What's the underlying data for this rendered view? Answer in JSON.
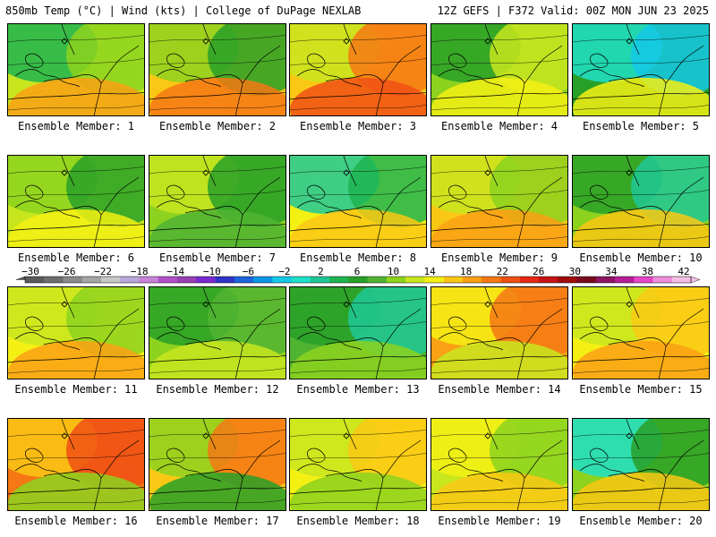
{
  "header": {
    "left": "850mb Temp (°C) | Wind (kts) | College of DuPage NEXLAB",
    "right": "12Z GEFS | F372 Valid: 00Z MON JUN 23 2025"
  },
  "colorbar": {
    "ticks": [
      "-30",
      "-26",
      "-22",
      "-18",
      "-14",
      "-10",
      "-6",
      "-2",
      "2",
      "6",
      "10",
      "14",
      "18",
      "22",
      "26",
      "30",
      "34",
      "38",
      "42"
    ],
    "colors": [
      "#5a5a5a",
      "#6e6e6e",
      "#8a8a8a",
      "#a5a5a5",
      "#c8c8c8",
      "#b9a7d9",
      "#c882d8",
      "#b050c8",
      "#9640b4",
      "#7a2ad0",
      "#3232c8",
      "#1e64dc",
      "#0a96e6",
      "#14c8e6",
      "#1ee1c8",
      "#1ec896",
      "#1eb450",
      "#28a028",
      "#50b432",
      "#8cd21e",
      "#c8e61e",
      "#f5f014",
      "#fac814",
      "#faa014",
      "#f57814",
      "#f05014",
      "#e62814",
      "#c81414",
      "#a00a0a",
      "#780a1e",
      "#8c1464",
      "#b41e96",
      "#e646c8",
      "#f08cdc",
      "#f5bee6"
    ]
  },
  "members": [
    {
      "label": "Ensemble Member: 1",
      "base": "#c8e61e",
      "blobs": [
        {
          "c": "#1eb450"
        },
        {
          "c": "#8cd21e"
        },
        {
          "c": "#faa014"
        }
      ]
    },
    {
      "label": "Ensemble Member: 2",
      "base": "#fac814",
      "blobs": [
        {
          "c": "#8cd21e"
        },
        {
          "c": "#28a028"
        },
        {
          "c": "#f57814"
        }
      ]
    },
    {
      "label": "Ensemble Member: 3",
      "base": "#fac814",
      "blobs": [
        {
          "c": "#c8e61e"
        },
        {
          "c": "#f57814"
        },
        {
          "c": "#f05014"
        }
      ]
    },
    {
      "label": "Ensemble Member: 4",
      "base": "#8cd21e",
      "blobs": [
        {
          "c": "#28a028"
        },
        {
          "c": "#c8e61e"
        },
        {
          "c": "#f5f014"
        }
      ]
    },
    {
      "label": "Ensemble Member: 5",
      "base": "#28a028",
      "blobs": [
        {
          "c": "#1ee1c8"
        },
        {
          "c": "#14c8e6"
        },
        {
          "c": "#f5f014"
        }
      ]
    },
    {
      "label": "Ensemble Member: 6",
      "base": "#c8e61e",
      "blobs": [
        {
          "c": "#8cd21e"
        },
        {
          "c": "#28a028"
        },
        {
          "c": "#f5f014"
        }
      ]
    },
    {
      "label": "Ensemble Member: 7",
      "base": "#8cd21e",
      "blobs": [
        {
          "c": "#c8e61e"
        },
        {
          "c": "#28a028"
        },
        {
          "c": "#50b432"
        }
      ]
    },
    {
      "label": "Ensemble Member: 8",
      "base": "#f5f014",
      "blobs": [
        {
          "c": "#1ec896"
        },
        {
          "c": "#1eb450"
        },
        {
          "c": "#fac814"
        }
      ]
    },
    {
      "label": "Ensemble Member: 9",
      "base": "#fac814",
      "blobs": [
        {
          "c": "#c8e61e"
        },
        {
          "c": "#8cd21e"
        },
        {
          "c": "#faa014"
        }
      ]
    },
    {
      "label": "Ensemble Member: 10",
      "base": "#8cd21e",
      "blobs": [
        {
          "c": "#28a028"
        },
        {
          "c": "#1ec896"
        },
        {
          "c": "#fac814"
        }
      ]
    },
    {
      "label": "Ensemble Member: 11",
      "base": "#f5f014",
      "blobs": [
        {
          "c": "#c8e61e"
        },
        {
          "c": "#8cd21e"
        },
        {
          "c": "#faa014"
        }
      ]
    },
    {
      "label": "Ensemble Member: 12",
      "base": "#8cd21e",
      "blobs": [
        {
          "c": "#28a028"
        },
        {
          "c": "#50b432"
        },
        {
          "c": "#c8e61e"
        }
      ]
    },
    {
      "label": "Ensemble Member: 13",
      "base": "#50b432",
      "blobs": [
        {
          "c": "#28a028"
        },
        {
          "c": "#1ec896"
        },
        {
          "c": "#8cd21e"
        }
      ]
    },
    {
      "label": "Ensemble Member: 14",
      "base": "#faa014",
      "blobs": [
        {
          "c": "#f5f014"
        },
        {
          "c": "#f57814"
        },
        {
          "c": "#c8e61e"
        }
      ]
    },
    {
      "label": "Ensemble Member: 15",
      "base": "#f5f014",
      "blobs": [
        {
          "c": "#c8e61e"
        },
        {
          "c": "#fac814"
        },
        {
          "c": "#faa014"
        }
      ]
    },
    {
      "label": "Ensemble Member: 16",
      "base": "#f57814",
      "blobs": [
        {
          "c": "#fac814"
        },
        {
          "c": "#f05014"
        },
        {
          "c": "#8cd21e"
        }
      ]
    },
    {
      "label": "Ensemble Member: 17",
      "base": "#fac814",
      "blobs": [
        {
          "c": "#8cd21e"
        },
        {
          "c": "#f57814"
        },
        {
          "c": "#28a028"
        }
      ]
    },
    {
      "label": "Ensemble Member: 18",
      "base": "#f5f014",
      "blobs": [
        {
          "c": "#c8e61e"
        },
        {
          "c": "#fac814"
        },
        {
          "c": "#8cd21e"
        }
      ]
    },
    {
      "label": "Ensemble Member: 19",
      "base": "#c8e61e",
      "blobs": [
        {
          "c": "#f5f014"
        },
        {
          "c": "#8cd21e"
        },
        {
          "c": "#fac814"
        }
      ]
    },
    {
      "label": "Ensemble Member: 20",
      "base": "#8cd21e",
      "blobs": [
        {
          "c": "#1ee1c8"
        },
        {
          "c": "#28a028"
        },
        {
          "c": "#fac814"
        }
      ]
    }
  ]
}
